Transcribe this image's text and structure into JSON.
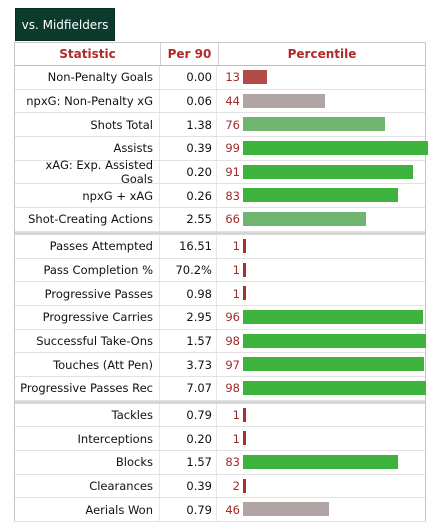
{
  "tab": {
    "label": "vs. Midfielders"
  },
  "headers": {
    "statistic": "Statistic",
    "per90": "Per 90",
    "percentile": "Percentile"
  },
  "colors": {
    "low": "#b44a4a",
    "mid_gray": "#b0a4a4",
    "good": "#6fb56f",
    "best": "#3db33d",
    "tick": "#a63030"
  },
  "groups": [
    [
      {
        "stat": "Non-Penalty Goals",
        "per90": "0.00",
        "pct": 13,
        "color": "low"
      },
      {
        "stat": "npxG: Non-Penalty xG",
        "per90": "0.06",
        "pct": 44,
        "color": "mid_gray"
      },
      {
        "stat": "Shots Total",
        "per90": "1.38",
        "pct": 76,
        "color": "good"
      },
      {
        "stat": "Assists",
        "per90": "0.39",
        "pct": 99,
        "color": "best"
      },
      {
        "stat": "xAG: Exp. Assisted Goals",
        "per90": "0.20",
        "pct": 91,
        "color": "best"
      },
      {
        "stat": "npxG + xAG",
        "per90": "0.26",
        "pct": 83,
        "color": "best"
      },
      {
        "stat": "Shot-Creating Actions",
        "per90": "2.55",
        "pct": 66,
        "color": "good"
      }
    ],
    [
      {
        "stat": "Passes Attempted",
        "per90": "16.51",
        "pct": 1,
        "color": "tick"
      },
      {
        "stat": "Pass Completion %",
        "per90": "70.2%",
        "pct": 1,
        "color": "tick"
      },
      {
        "stat": "Progressive Passes",
        "per90": "0.98",
        "pct": 1,
        "color": "tick"
      },
      {
        "stat": "Progressive Carries",
        "per90": "2.95",
        "pct": 96,
        "color": "best"
      },
      {
        "stat": "Successful Take-Ons",
        "per90": "1.57",
        "pct": 98,
        "color": "best"
      },
      {
        "stat": "Touches (Att Pen)",
        "per90": "3.73",
        "pct": 97,
        "color": "best"
      },
      {
        "stat": "Progressive Passes Rec",
        "per90": "7.07",
        "pct": 98,
        "color": "best"
      }
    ],
    [
      {
        "stat": "Tackles",
        "per90": "0.79",
        "pct": 1,
        "color": "tick"
      },
      {
        "stat": "Interceptions",
        "per90": "0.20",
        "pct": 1,
        "color": "tick"
      },
      {
        "stat": "Blocks",
        "per90": "1.57",
        "pct": 83,
        "color": "best"
      },
      {
        "stat": "Clearances",
        "per90": "0.39",
        "pct": 2,
        "color": "tick"
      },
      {
        "stat": "Aerials Won",
        "per90": "0.79",
        "pct": 46,
        "color": "mid_gray"
      }
    ]
  ]
}
